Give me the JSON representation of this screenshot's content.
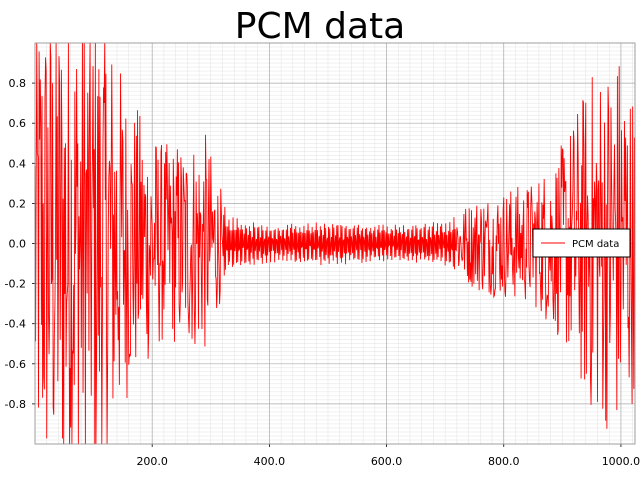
{
  "chart_data": {
    "type": "line",
    "title": "PCM data",
    "xlabel": "",
    "ylabel": "",
    "xlim": [
      0,
      1024
    ],
    "ylim": [
      -1.0,
      1.0
    ],
    "x_ticks": [
      200,
      400,
      600,
      800,
      1000
    ],
    "x_tick_labels": [
      "200.0",
      "400.0",
      "600.0",
      "800.0",
      "1000.0"
    ],
    "y_ticks": [
      -0.8,
      -0.6,
      -0.4,
      -0.2,
      0.0,
      0.2,
      0.4,
      0.6,
      0.8
    ],
    "y_tick_labels": [
      "-0.8",
      "-0.6",
      "-0.4",
      "-0.2",
      "0.0",
      "0.2",
      "0.4",
      "0.6",
      "0.8"
    ],
    "grid": true,
    "minor_grid": true,
    "legend_position": "right",
    "series": [
      {
        "name": "PCM data",
        "color": "#ff0000",
        "n_samples": 1024,
        "envelope": [
          {
            "x": 0,
            "amplitude": 1.0
          },
          {
            "x": 80,
            "amplitude": 1.0
          },
          {
            "x": 120,
            "amplitude": 0.95
          },
          {
            "x": 160,
            "amplitude": 0.6
          },
          {
            "x": 220,
            "amplitude": 0.4
          },
          {
            "x": 290,
            "amplitude": 0.45
          },
          {
            "x": 330,
            "amplitude": 0.12
          },
          {
            "x": 400,
            "amplitude": 0.08
          },
          {
            "x": 500,
            "amplitude": 0.1
          },
          {
            "x": 600,
            "amplitude": 0.08
          },
          {
            "x": 700,
            "amplitude": 0.1
          },
          {
            "x": 760,
            "amplitude": 0.2
          },
          {
            "x": 850,
            "amplitude": 0.25
          },
          {
            "x": 900,
            "amplitude": 0.4
          },
          {
            "x": 950,
            "amplitude": 0.7
          },
          {
            "x": 1000,
            "amplitude": 0.8
          },
          {
            "x": 1024,
            "amplitude": 0.6
          }
        ]
      }
    ]
  }
}
